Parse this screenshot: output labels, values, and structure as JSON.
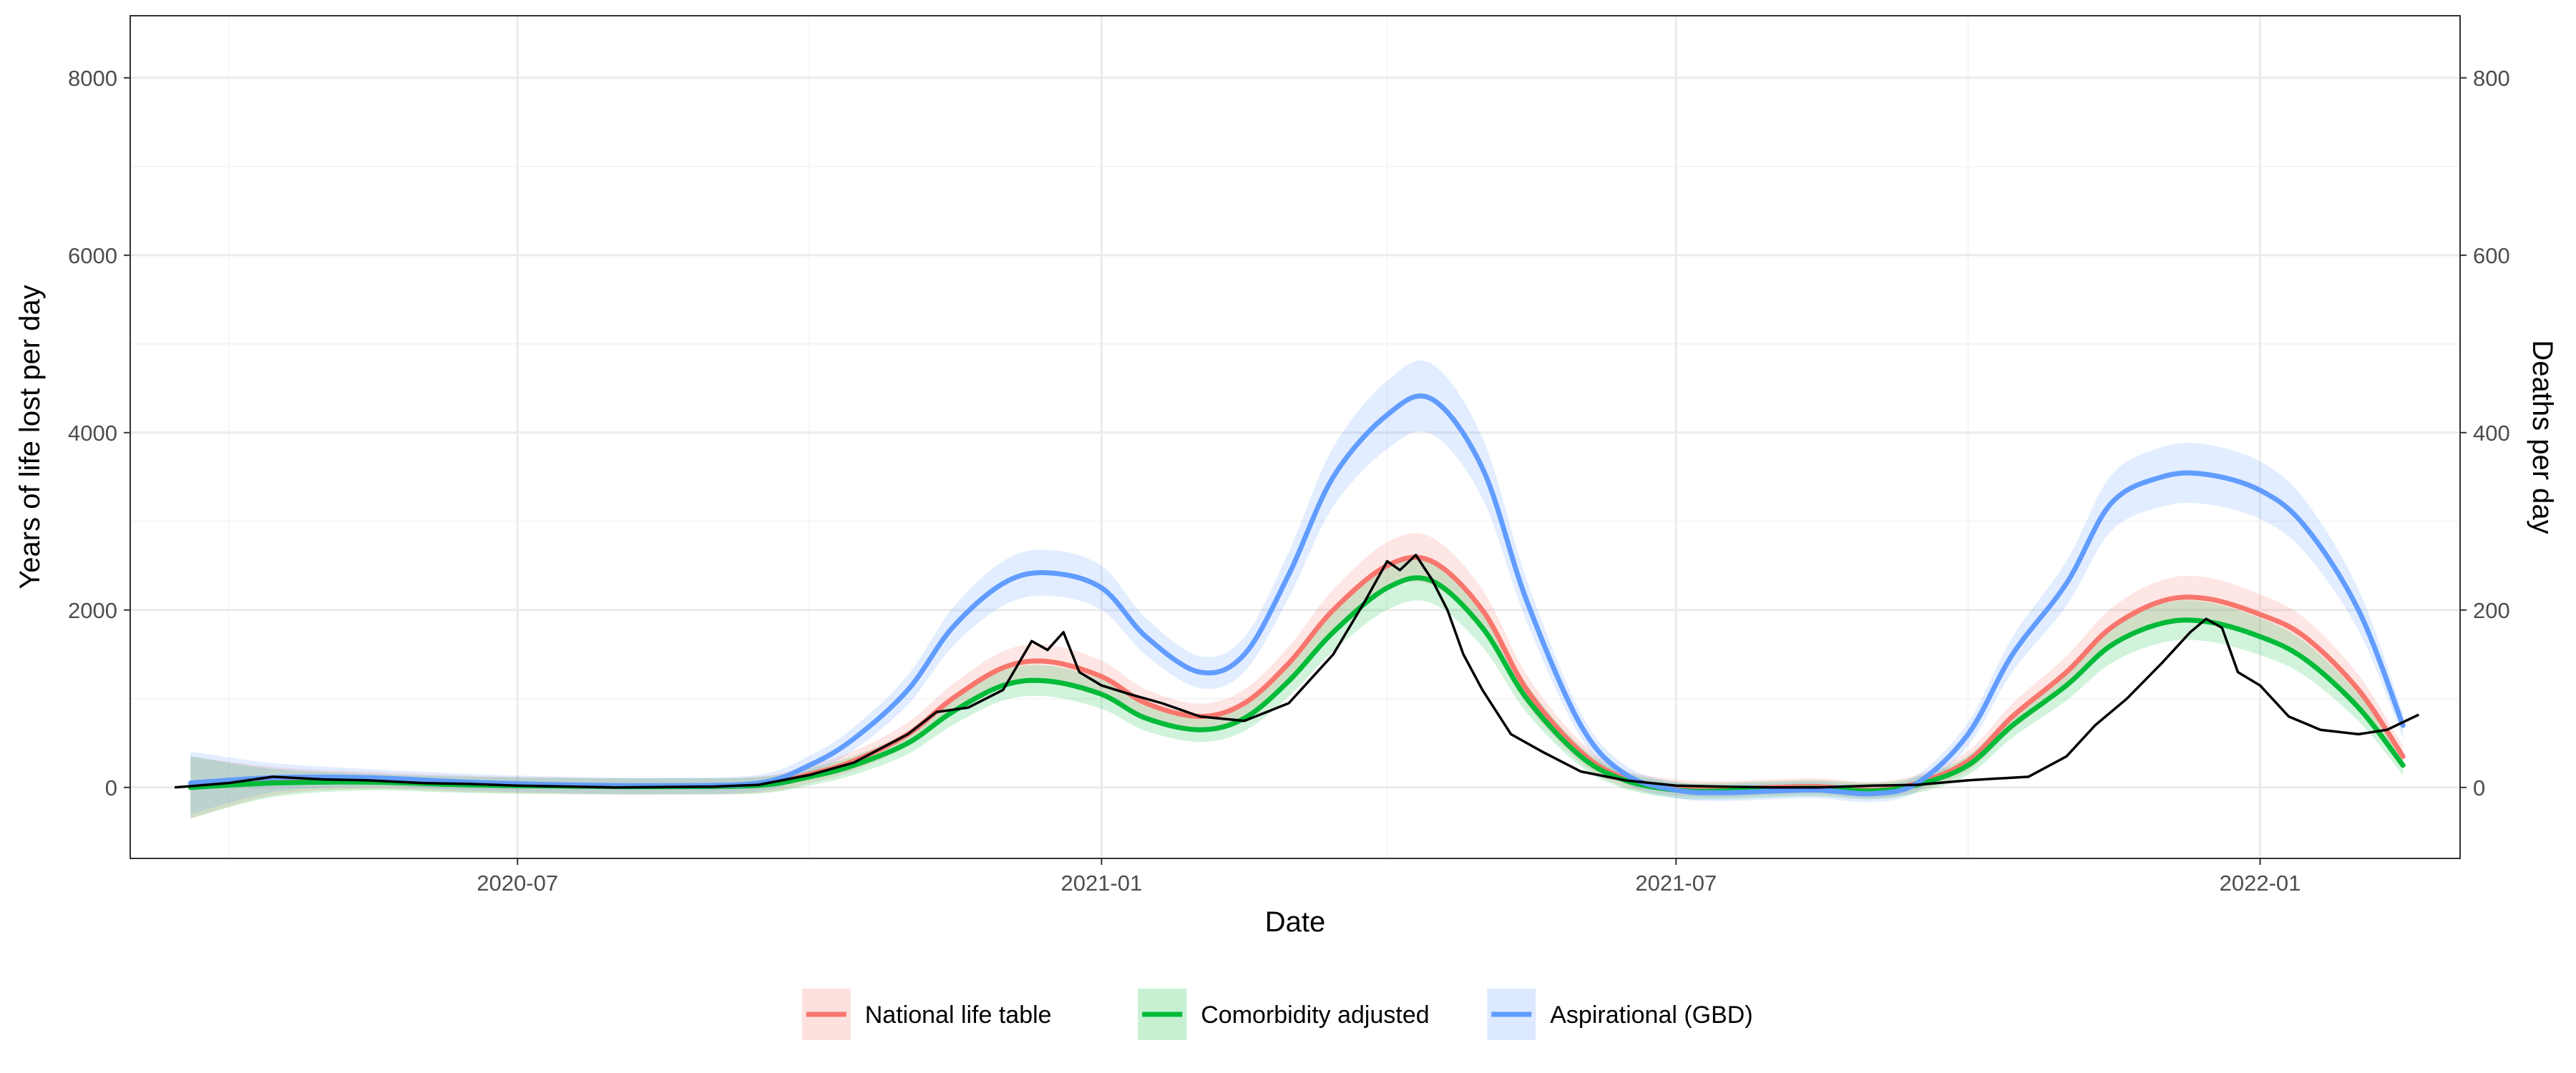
{
  "chart_data": {
    "type": "line",
    "xlabel": "Date",
    "ylabel": "Years of life lost per day",
    "y2label": "Deaths per day",
    "xlim": [
      "2020-03-01",
      "2022-03-05"
    ],
    "ylim": [
      -800,
      8700
    ],
    "y2lim": [
      -80,
      870
    ],
    "y2_scale_factor": 10,
    "x_ticks": [
      {
        "date": "2020-07-01",
        "label": "2020-07"
      },
      {
        "date": "2021-01-01",
        "label": "2021-01"
      },
      {
        "date": "2021-07-01",
        "label": "2021-07"
      },
      {
        "date": "2022-01-01",
        "label": "2022-01"
      }
    ],
    "x_minor_ticks": [
      "2020-04-01",
      "2020-10-01",
      "2021-04-01",
      "2021-10-01"
    ],
    "y_ticks": [
      0,
      2000,
      4000,
      6000,
      8000
    ],
    "y_minor_ticks": [
      1000,
      3000,
      5000,
      7000
    ],
    "y2_ticks": [
      0,
      200,
      400,
      600,
      800
    ],
    "grid": true,
    "legend_position": "bottom",
    "series": [
      {
        "name": "National life table",
        "color": "#f8766d",
        "x": [
          "2020-03-20",
          "2020-04-15",
          "2020-05-15",
          "2020-06-15",
          "2020-07-15",
          "2020-08-15",
          "2020-09-15",
          "2020-10-01",
          "2020-10-15",
          "2020-11-01",
          "2020-11-15",
          "2020-12-01",
          "2020-12-15",
          "2021-01-01",
          "2021-01-15",
          "2021-02-01",
          "2021-02-15",
          "2021-03-01",
          "2021-03-15",
          "2021-04-01",
          "2021-04-15",
          "2021-05-01",
          "2021-05-15",
          "2021-06-01",
          "2021-06-15",
          "2021-07-01",
          "2021-07-15",
          "2021-08-01",
          "2021-08-15",
          "2021-09-01",
          "2021-09-15",
          "2021-10-01",
          "2021-10-15",
          "2021-11-01",
          "2021-11-15",
          "2021-12-01",
          "2021-12-15",
          "2022-01-01",
          "2022-01-15",
          "2022-02-01",
          "2022-02-15"
        ],
        "values": [
          0,
          70,
          80,
          40,
          20,
          10,
          30,
          150,
          300,
          600,
          1000,
          1350,
          1420,
          1250,
          950,
          800,
          950,
          1400,
          2000,
          2500,
          2550,
          2000,
          1100,
          400,
          100,
          0,
          -20,
          0,
          10,
          -30,
          50,
          300,
          800,
          1300,
          1800,
          2100,
          2130,
          1950,
          1700,
          1100,
          350
        ]
      },
      {
        "name": "Comorbidity adjusted",
        "color": "#00ba38",
        "x": [
          "2020-03-20",
          "2020-04-15",
          "2020-05-15",
          "2020-06-15",
          "2020-07-15",
          "2020-08-15",
          "2020-09-15",
          "2020-10-01",
          "2020-10-15",
          "2020-11-01",
          "2020-11-15",
          "2020-12-01",
          "2020-12-15",
          "2021-01-01",
          "2021-01-15",
          "2021-02-01",
          "2021-02-15",
          "2021-03-01",
          "2021-03-15",
          "2021-04-01",
          "2021-04-15",
          "2021-05-01",
          "2021-05-15",
          "2021-06-01",
          "2021-06-15",
          "2021-07-01",
          "2021-07-15",
          "2021-08-01",
          "2021-08-15",
          "2021-09-01",
          "2021-09-15",
          "2021-10-01",
          "2021-10-15",
          "2021-11-01",
          "2021-11-15",
          "2021-12-01",
          "2021-12-15",
          "2022-01-01",
          "2022-01-15",
          "2022-02-01",
          "2022-02-15"
        ],
        "values": [
          0,
          50,
          60,
          30,
          15,
          10,
          25,
          120,
          250,
          500,
          850,
          1150,
          1200,
          1050,
          780,
          650,
          780,
          1200,
          1750,
          2250,
          2330,
          1800,
          1000,
          350,
          80,
          -30,
          -40,
          -20,
          -10,
          -40,
          30,
          250,
          700,
          1150,
          1600,
          1850,
          1870,
          1700,
          1450,
          900,
          250
        ]
      },
      {
        "name": "Aspirational (GBD)",
        "color": "#619cff",
        "x": [
          "2020-03-20",
          "2020-04-15",
          "2020-05-15",
          "2020-06-15",
          "2020-07-15",
          "2020-08-15",
          "2020-09-15",
          "2020-10-01",
          "2020-10-15",
          "2020-11-01",
          "2020-11-15",
          "2020-12-01",
          "2020-12-15",
          "2021-01-01",
          "2021-01-15",
          "2021-02-01",
          "2021-02-15",
          "2021-03-01",
          "2021-03-15",
          "2021-04-01",
          "2021-04-15",
          "2021-05-01",
          "2021-05-15",
          "2021-06-01",
          "2021-06-15",
          "2021-07-01",
          "2021-07-15",
          "2021-08-01",
          "2021-08-15",
          "2021-09-01",
          "2021-09-15",
          "2021-10-01",
          "2021-10-15",
          "2021-11-01",
          "2021-11-15",
          "2021-12-01",
          "2021-12-15",
          "2022-01-01",
          "2022-01-15",
          "2022-02-01",
          "2022-02-15"
        ],
        "values": [
          50,
          110,
          110,
          60,
          30,
          20,
          50,
          250,
          550,
          1100,
          1800,
          2300,
          2420,
          2250,
          1700,
          1300,
          1500,
          2400,
          3500,
          4200,
          4380,
          3600,
          2100,
          700,
          150,
          -30,
          -60,
          -40,
          -30,
          -70,
          50,
          600,
          1500,
          2300,
          3200,
          3500,
          3530,
          3350,
          2950,
          2000,
          700
        ]
      },
      {
        "name": "Deaths per day",
        "axis": "right",
        "color": "#000000",
        "x": [
          "2020-03-15",
          "2020-04-01",
          "2020-04-15",
          "2020-05-01",
          "2020-05-15",
          "2020-06-01",
          "2020-06-15",
          "2020-07-01",
          "2020-08-01",
          "2020-09-01",
          "2020-09-15",
          "2020-10-01",
          "2020-10-15",
          "2020-11-01",
          "2020-11-10",
          "2020-11-20",
          "2020-12-01",
          "2020-12-10",
          "2020-12-15",
          "2020-12-20",
          "2020-12-25",
          "2021-01-01",
          "2021-01-10",
          "2021-01-20",
          "2021-02-01",
          "2021-02-15",
          "2021-03-01",
          "2021-03-15",
          "2021-03-25",
          "2021-04-01",
          "2021-04-05",
          "2021-04-10",
          "2021-04-15",
          "2021-04-20",
          "2021-04-25",
          "2021-05-01",
          "2021-05-10",
          "2021-05-20",
          "2021-06-01",
          "2021-06-15",
          "2021-07-01",
          "2021-07-15",
          "2021-08-01",
          "2021-08-15",
          "2021-09-01",
          "2021-09-15",
          "2021-10-01",
          "2021-10-10",
          "2021-10-20",
          "2021-11-01",
          "2021-11-10",
          "2021-11-20",
          "2021-12-01",
          "2021-12-10",
          "2021-12-15",
          "2021-12-20",
          "2021-12-25",
          "2022-01-01",
          "2022-01-10",
          "2022-01-20",
          "2022-02-01",
          "2022-02-10",
          "2022-02-20"
        ],
        "values": [
          0,
          5,
          12,
          9,
          8,
          5,
          4,
          2,
          0,
          1,
          3,
          14,
          28,
          60,
          85,
          90,
          110,
          165,
          155,
          175,
          130,
          115,
          105,
          95,
          80,
          75,
          95,
          150,
          210,
          255,
          245,
          262,
          235,
          200,
          150,
          110,
          60,
          40,
          18,
          8,
          2,
          1,
          0,
          0,
          2,
          3,
          8,
          10,
          12,
          35,
          70,
          100,
          140,
          175,
          190,
          180,
          130,
          115,
          80,
          65,
          60,
          65,
          82
        ]
      }
    ]
  }
}
